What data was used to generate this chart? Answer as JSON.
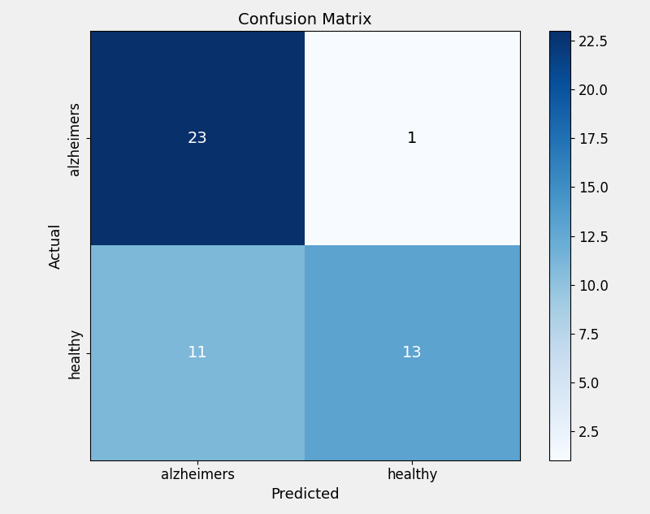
{
  "matrix": [
    [
      23,
      1
    ],
    [
      11,
      13
    ]
  ],
  "classes": [
    "alzheimers",
    "healthy"
  ],
  "title": "Confusion Matrix",
  "xlabel": "Predicted",
  "ylabel": "Actual",
  "colormap": "Blues",
  "text_colors": {
    "dark": "white",
    "light": "black",
    "threshold": 10
  },
  "title_fontsize": 14,
  "label_fontsize": 13,
  "tick_fontsize": 12,
  "annot_fontsize": 14,
  "figsize": [
    8.0,
    6.33
  ],
  "dpi": 100,
  "fig_facecolor": "#f0f0f0",
  "ytick_rotation": 90
}
